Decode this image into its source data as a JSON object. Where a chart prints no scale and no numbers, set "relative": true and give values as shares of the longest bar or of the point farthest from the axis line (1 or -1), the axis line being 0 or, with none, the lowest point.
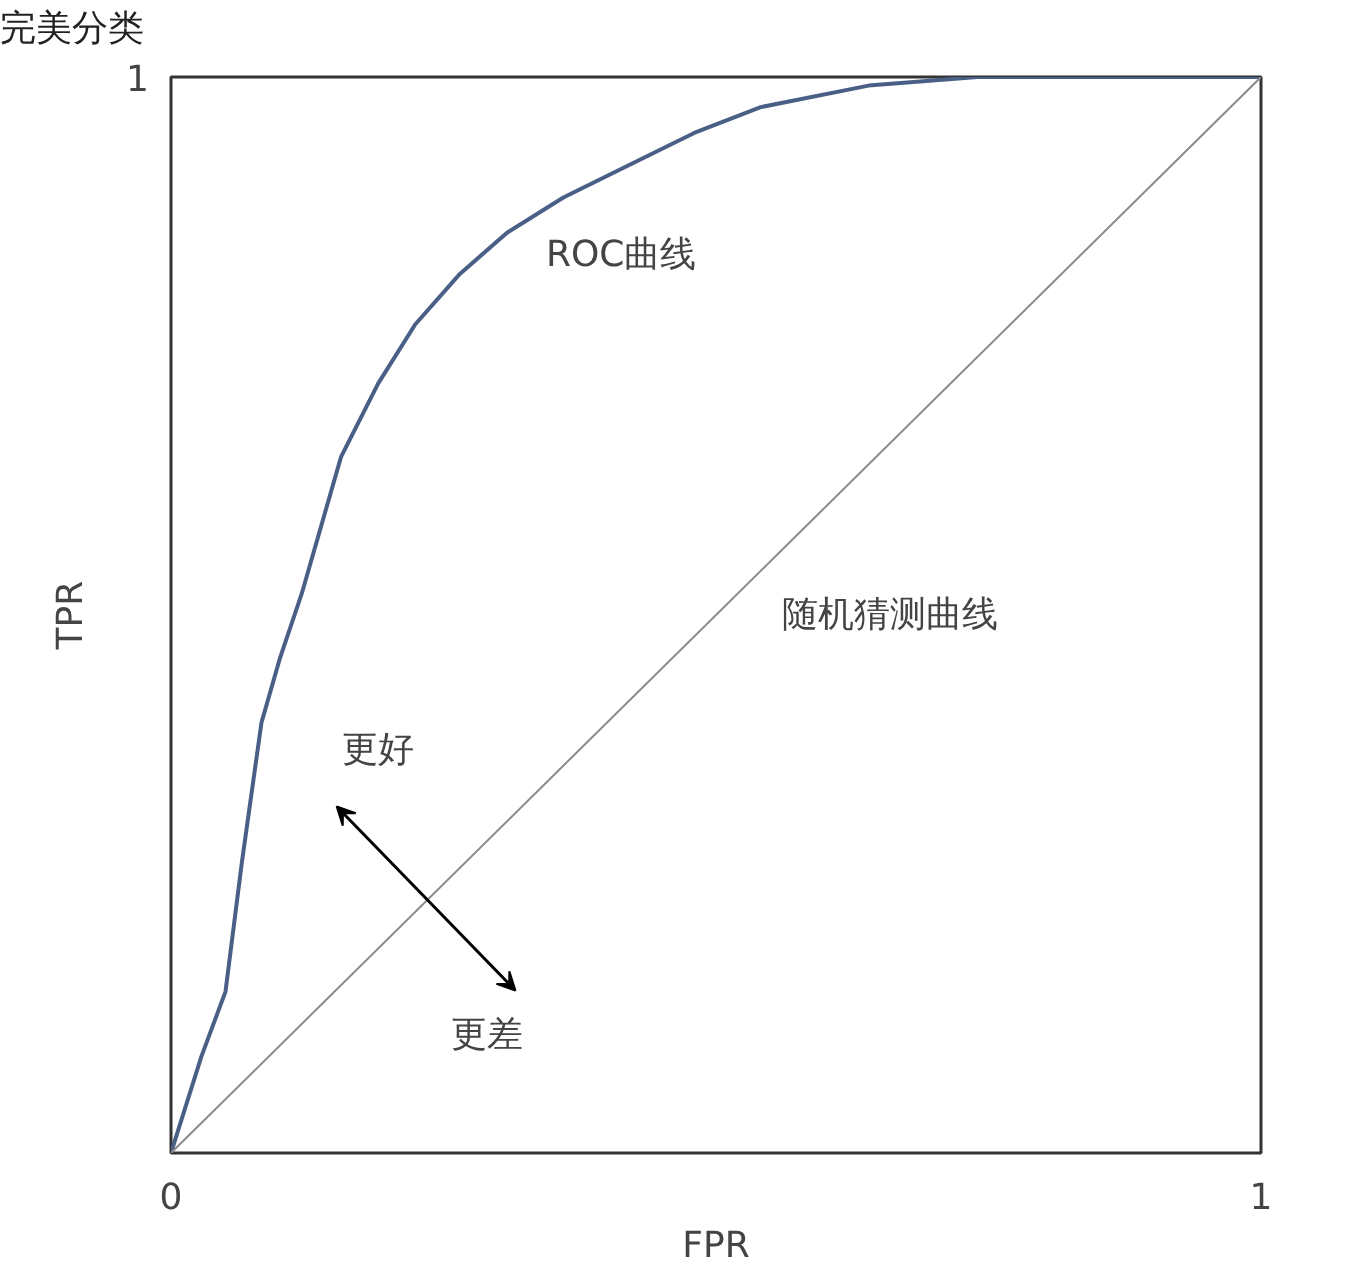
{
  "chart_data": {
    "type": "line",
    "xlabel": "FPR",
    "ylabel": "TPR",
    "relative": true,
    "xlim": [
      0,
      1
    ],
    "xticks": [
      0,
      1
    ],
    "marker": "none",
    "series": [
      {
        "type": "line",
        "color": "#4a5f86",
        "x": [
          0,
          0.028,
          0.05,
          0.065,
          0.083,
          0.1,
          0.12,
          0.156,
          0.19,
          0.224,
          0.265,
          0.308,
          0.36,
          0.418,
          0.48,
          0.541,
          0.64,
          0.74,
          1
        ],
        "values": [
          0,
          0.09,
          0.15,
          0.27,
          0.4,
          0.46,
          0.52,
          0.647,
          0.715,
          0.77,
          0.817,
          0.855,
          0.888,
          0.917,
          0.948,
          0.972,
          0.992,
          1,
          1
        ],
        "line_style": "solid"
      },
      {
        "type": "line",
        "color": "#8a8a8a",
        "x": [
          0,
          1
        ],
        "values": [
          0,
          1
        ],
        "line_style": "solid"
      }
    ],
    "annotations": [
      "完美分类",
      "1",
      "ROC曲线",
      "随机猜测曲线",
      "更好",
      "更差"
    ]
  }
}
